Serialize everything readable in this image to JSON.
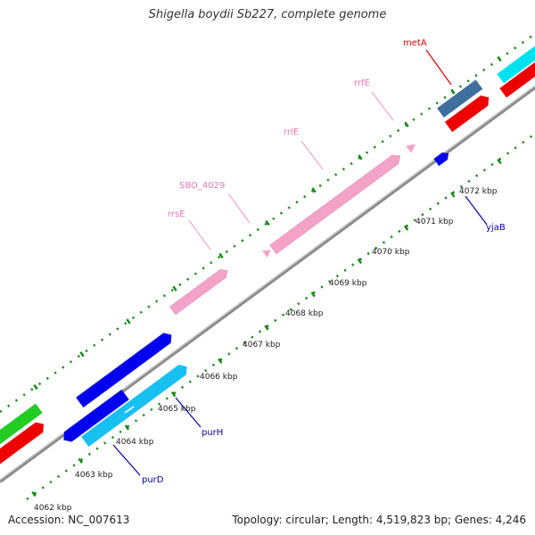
{
  "title": "Shigella boydii Sb227, complete genome",
  "accession": "Accession: NC_007613",
  "summary": "Topology: circular; Length: 4,519,823 bp; Genes: 4,246",
  "colors": {
    "backbone": "#8a8a8a",
    "tick_dot": "#1a8a1a",
    "rna": "#f4a3c8",
    "rna_label": "#e678b4",
    "gene_label": "#0000aa",
    "highlight_label": "#dd0000",
    "scale_label": "#222222"
  },
  "scale_labels": [
    "4062 kbp",
    "4063 kbp",
    "4064 kbp",
    "4065 kbp",
    "4066 kbp",
    "4067 kbp",
    "4068 kbp",
    "4069 kbp",
    "4070 kbp",
    "4071 kbp",
    "4072 kbp"
  ],
  "features": [
    {
      "name": "rrsE",
      "type": "rRNA"
    },
    {
      "name": "SBO_4029",
      "type": "tRNA"
    },
    {
      "name": "rrlE",
      "type": "rRNA"
    },
    {
      "name": "rrfE",
      "type": "rRNA"
    },
    {
      "name": "metA",
      "type": "gene"
    },
    {
      "name": "yjaB",
      "type": "gene"
    },
    {
      "name": "purH",
      "type": "gene"
    },
    {
      "name": "purD",
      "type": "gene"
    }
  ]
}
